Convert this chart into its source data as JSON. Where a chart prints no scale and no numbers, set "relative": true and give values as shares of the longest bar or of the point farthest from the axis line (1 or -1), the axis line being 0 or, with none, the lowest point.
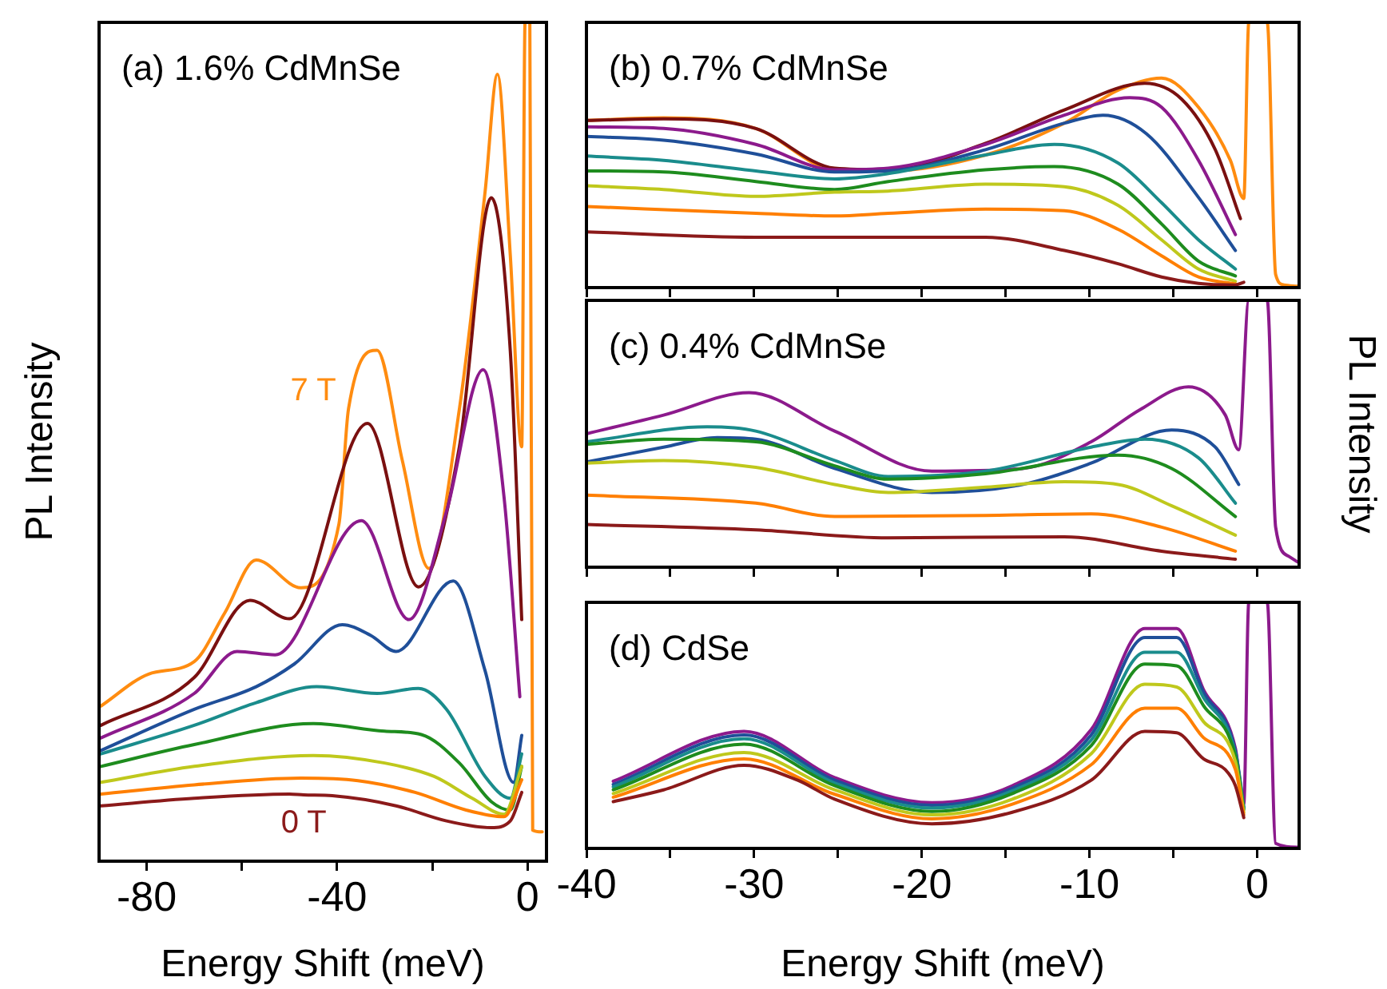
{
  "chart_data": [
    {
      "type": "line",
      "title": "(a) 1.6% CdMnSe",
      "xlabel": "Energy Shift (meV)",
      "ylabel": "PL Intensity",
      "relative": true,
      "tick_labels": "x",
      "xlim": [
        -90,
        4
      ],
      "xticks": [
        -80,
        {
          "value": -60,
          "label": null
        },
        -40,
        {
          "value": -20,
          "label": null
        },
        0
      ],
      "annotations": [
        "7 T",
        "0 T"
      ],
      "series": [
        {
          "color": "#8b1a1a",
          "x": [
            -89.6,
            -70,
            -50,
            -47,
            -41,
            -27.6,
            -17,
            -7.6,
            -3.6,
            -1.2
          ],
          "values": [
            0.066,
            0.075,
            0.08,
            0.079,
            0.078,
            0.066,
            0.048,
            0.04,
            0.048,
            0.082
          ]
        },
        {
          "color": "#ff7f00",
          "x": [
            -89.6,
            -70,
            -47.6,
            -35.6,
            -23.6,
            -12.9,
            -4.9,
            -1.2
          ],
          "values": [
            0.08,
            0.091,
            0.099,
            0.096,
            0.082,
            0.061,
            0.053,
            0.097
          ]
        },
        {
          "color": "#bfc81c",
          "x": [
            -89.6,
            -70,
            -45,
            -30,
            -19.6,
            -11.6,
            -4.9,
            -1.2
          ],
          "values": [
            0.094,
            0.113,
            0.126,
            0.117,
            0.101,
            0.075,
            0.056,
            0.113
          ]
        },
        {
          "color": "#1e8c1e",
          "x": [
            -89.6,
            -70,
            -45,
            -30,
            -22.3,
            -14.3,
            -7.6,
            -3.6,
            -1.2
          ],
          "values": [
            0.113,
            0.139,
            0.164,
            0.155,
            0.151,
            0.117,
            0.071,
            0.061,
            0.113
          ]
        },
        {
          "color": "#1a8c8c",
          "x": [
            -89.6,
            -70,
            -57,
            -44.3,
            -31.6,
            -22.9,
            -17,
            -8.9,
            -3.6,
            -1.2
          ],
          "values": [
            0.128,
            0.162,
            0.189,
            0.208,
            0.2,
            0.206,
            0.181,
            0.101,
            0.075,
            0.128
          ]
        },
        {
          "color": "#1f4f99",
          "x": [
            -89.6,
            -70,
            -57,
            -49,
            -38.9,
            -32.9,
            -27.6,
            -15.6,
            -8.9,
            -2.9,
            -1.2
          ],
          "values": [
            0.132,
            0.181,
            0.208,
            0.235,
            0.282,
            0.269,
            0.25,
            0.334,
            0.227,
            0.094,
            0.15
          ]
        },
        {
          "color": "#8c1a8c",
          "x": [
            -89.6,
            -70,
            -61,
            -53,
            -34.9,
            -24.9,
            -17,
            -9.3,
            -4.9,
            -1.6
          ],
          "values": [
            0.147,
            0.2,
            0.25,
            0.246,
            0.406,
            0.288,
            0.417,
            0.586,
            0.433,
            0.196
          ]
        },
        {
          "color": "#7a1010",
          "x": [
            -89.6,
            -70,
            -58.3,
            -50,
            -33.6,
            -22.9,
            -14.3,
            -7.6,
            -3.6,
            -1.2
          ],
          "values": [
            0.162,
            0.219,
            0.311,
            0.289,
            0.522,
            0.327,
            0.494,
            0.791,
            0.608,
            0.288
          ]
        },
        {
          "color": "#ff8c10",
          "x": [
            -89.6,
            -79.6,
            -70,
            -63.6,
            -57,
            -47.6,
            -39.6,
            -37.6,
            -31.6,
            -26.3,
            -20.7,
            -14.3,
            -8.9,
            -6.3,
            -3.6,
            -1.2,
            -0.5,
            0.5,
            1.1,
            3.1
          ],
          "values": [
            0.185,
            0.223,
            0.238,
            0.296,
            0.359,
            0.326,
            0.402,
            0.539,
            0.609,
            0.478,
            0.349,
            0.539,
            0.798,
            0.938,
            0.722,
            0.494,
            1,
            1,
            0.037,
            0.035
          ]
        }
      ]
    },
    {
      "type": "line",
      "title": "(b) 0.7% CdMnSe",
      "relative": true,
      "tick_labels": false,
      "xlim": [
        -40,
        2.5
      ],
      "xticks": [
        {
          "value": -40,
          "label": null
        },
        {
          "value": -35,
          "label": null
        },
        {
          "value": -30,
          "label": null
        },
        {
          "value": -25,
          "label": null
        },
        {
          "value": -20,
          "label": null
        },
        {
          "value": -15,
          "label": null
        },
        {
          "value": -10,
          "label": null
        },
        {
          "value": -5,
          "label": null
        },
        {
          "value": 0,
          "label": null
        }
      ],
      "series": [
        {
          "color": "#8b1a1a",
          "x": [
            -40,
            -29.9,
            -22,
            -16.2,
            -11.5,
            -8.3,
            -5.7,
            -3.5,
            -1.3,
            -0.8
          ],
          "values": [
            0.21,
            0.19,
            0.19,
            0.19,
            0.14,
            0.09,
            0.04,
            0.016,
            0.01,
            0.02
          ]
        },
        {
          "color": "#ff7f00",
          "x": [
            -40,
            -29.9,
            -25.2,
            -22,
            -16.2,
            -11.5,
            -8.3,
            -5.7,
            -3.5,
            -1.3
          ],
          "values": [
            0.306,
            0.28,
            0.27,
            0.28,
            0.296,
            0.29,
            0.22,
            0.12,
            0.04,
            0.014
          ]
        },
        {
          "color": "#bfc81c",
          "x": [
            -40,
            -35.4,
            -29.9,
            -25.2,
            -22,
            -16.2,
            -11.5,
            -8.3,
            -5.7,
            -3.5,
            -1.3
          ],
          "values": [
            0.384,
            0.37,
            0.344,
            0.36,
            0.364,
            0.39,
            0.38,
            0.31,
            0.18,
            0.07,
            0.024
          ]
        },
        {
          "color": "#1e8c1e",
          "x": [
            -40,
            -35.4,
            -29.9,
            -25.2,
            -22,
            -16.2,
            -12.1,
            -8.3,
            -5.7,
            -3.5,
            -1.3
          ],
          "values": [
            0.44,
            0.436,
            0.4,
            0.37,
            0.4,
            0.444,
            0.456,
            0.39,
            0.24,
            0.1,
            0.044
          ]
        },
        {
          "color": "#1a8c8c",
          "x": [
            -40,
            -35.4,
            -29.9,
            -25.2,
            -22,
            -16.2,
            -12.1,
            -8.3,
            -5.7,
            -3.5,
            -1.3
          ],
          "values": [
            0.496,
            0.48,
            0.44,
            0.41,
            0.43,
            0.5,
            0.54,
            0.47,
            0.32,
            0.18,
            0.07
          ]
        },
        {
          "color": "#1f4f99",
          "x": [
            -40,
            -35.4,
            -29.9,
            -25.2,
            -22,
            -16.2,
            -11.5,
            -9.2,
            -6.6,
            -3.5,
            -1.3
          ],
          "values": [
            0.57,
            0.556,
            0.504,
            0.436,
            0.44,
            0.52,
            0.62,
            0.65,
            0.58,
            0.34,
            0.14
          ]
        },
        {
          "color": "#8c1a8c",
          "x": [
            -40,
            -35.4,
            -29.9,
            -25.2,
            -22,
            -16.2,
            -11.5,
            -7.6,
            -5.7,
            -3.5,
            -1.3
          ],
          "values": [
            0.606,
            0.6,
            0.54,
            0.444,
            0.45,
            0.54,
            0.65,
            0.716,
            0.68,
            0.48,
            0.2
          ]
        },
        {
          "color": "#7a1010",
          "x": [
            -40,
            -35.4,
            -29.9,
            -25.2,
            -22,
            -16.2,
            -11.5,
            -6.7,
            -4.5,
            -2.5,
            -1.0
          ],
          "values": [
            0.63,
            0.636,
            0.6,
            0.45,
            0.444,
            0.544,
            0.67,
            0.77,
            0.71,
            0.52,
            0.26
          ]
        },
        {
          "color": "#ff8c10",
          "x": [
            -40,
            -35.4,
            -29.9,
            -25.2,
            -22,
            -16.2,
            -11.5,
            -8.3,
            -5.7,
            -3.5,
            -1.6,
            -0.8,
            -0.5,
            0.6,
            1.1,
            1.6,
            2.4
          ],
          "values": [
            0.63,
            0.64,
            0.6,
            0.444,
            0.44,
            0.5,
            0.62,
            0.744,
            0.79,
            0.68,
            0.48,
            0.336,
            1,
            1,
            0.05,
            0.01,
            0.005
          ]
        }
      ]
    },
    {
      "type": "line",
      "title": "(c) 0.4% CdMnSe",
      "y2label": "PL Intensity",
      "relative": true,
      "tick_labels": false,
      "xlim": [
        -40,
        2.5
      ],
      "xticks": [
        {
          "value": -40,
          "label": null
        },
        {
          "value": -35,
          "label": null
        },
        {
          "value": -30,
          "label": null
        },
        {
          "value": -25,
          "label": null
        },
        {
          "value": -20,
          "label": null
        },
        {
          "value": -15,
          "label": null
        },
        {
          "value": -10,
          "label": null
        },
        {
          "value": -5,
          "label": null
        },
        {
          "value": 0,
          "label": null
        }
      ],
      "series": [
        {
          "color": "#8b1a1a",
          "x": [
            -40,
            -29.9,
            -22,
            -11.5,
            -5.7,
            -1.3
          ],
          "values": [
            0.16,
            0.14,
            0.11,
            0.114,
            0.06,
            0.03
          ]
        },
        {
          "color": "#ff7f00",
          "x": [
            -40,
            -29.9,
            -25.2,
            -16.2,
            -9.9,
            -5.7,
            -1.3
          ],
          "values": [
            0.27,
            0.24,
            0.19,
            0.194,
            0.2,
            0.15,
            0.06
          ]
        },
        {
          "color": "#bfc81c",
          "x": [
            -40,
            -35.4,
            -29.9,
            -25.2,
            -22,
            -16.2,
            -11.5,
            -8.3,
            -5.1,
            -1.3
          ],
          "values": [
            0.39,
            0.4,
            0.374,
            0.31,
            0.28,
            0.3,
            0.32,
            0.31,
            0.23,
            0.12
          ]
        },
        {
          "color": "#1e8c1e",
          "x": [
            -40,
            -35.4,
            -29.9,
            -25.2,
            -22,
            -16.2,
            -8.3,
            -5.1,
            -1.3
          ],
          "values": [
            0.46,
            0.48,
            0.47,
            0.38,
            0.33,
            0.35,
            0.42,
            0.37,
            0.19
          ]
        },
        {
          "color": "#1a8c8c",
          "x": [
            -40,
            -32.8,
            -29.9,
            -25.2,
            -22,
            -16.2,
            -9.9,
            -6.7,
            -3.5,
            -1.3
          ],
          "values": [
            0.47,
            0.526,
            0.51,
            0.4,
            0.34,
            0.36,
            0.45,
            0.48,
            0.41,
            0.24
          ]
        },
        {
          "color": "#1f4f99",
          "x": [
            -40,
            -35.4,
            -32.2,
            -29.9,
            -25.2,
            -19.4,
            -14,
            -9.9,
            -5.1,
            -2.5,
            -1.1
          ],
          "values": [
            0.394,
            0.45,
            0.486,
            0.48,
            0.37,
            0.28,
            0.31,
            0.39,
            0.514,
            0.45,
            0.31
          ]
        },
        {
          "color": "#8c1a8c",
          "x": [
            -40,
            -35.4,
            -30.3,
            -25.2,
            -19.4,
            -14,
            -9.9,
            -7,
            -4.1,
            -1.9,
            -1.1,
            -0.5,
            0.6,
            1.1,
            1.9,
            2.4
          ],
          "values": [
            0.5,
            0.57,
            0.654,
            0.51,
            0.36,
            0.37,
            0.47,
            0.59,
            0.676,
            0.57,
            0.44,
            1,
            1,
            0.15,
            0.04,
            0.02
          ]
        }
      ]
    },
    {
      "type": "line",
      "title": "(d) CdSe",
      "xlabel": "Energy Shift (meV)",
      "relative": true,
      "tick_labels": "x",
      "xlim": [
        -40,
        2.5
      ],
      "xticks": [
        -40,
        {
          "value": -35,
          "label": null
        },
        -30,
        {
          "value": -25,
          "label": null
        },
        -20,
        {
          "value": -15,
          "label": null
        },
        -10,
        {
          "value": -5,
          "label": null
        },
        0
      ],
      "series": [
        {
          "color": "#8b1a1a",
          "x": [
            -38.4,
            -35.4,
            -30.6,
            -27.4,
            -25.2,
            -19.4,
            -14.6,
            -9.9,
            -6.7,
            -4.8,
            -3.2,
            -1.9,
            -1.3,
            -0.8
          ],
          "values": [
            0.19,
            0.238,
            0.338,
            0.277,
            0.2,
            0.1,
            0.147,
            0.277,
            0.476,
            0.47,
            0.364,
            0.32,
            0.255,
            0.125
          ]
        },
        {
          "color": "#ff7f00",
          "x": [
            -38.4,
            -30.6,
            -25.2,
            -19.4,
            -14.6,
            -9.9,
            -6.7,
            -4.8,
            -3.2,
            -1.3,
            -0.8
          ],
          "values": [
            0.208,
            0.364,
            0.22,
            0.12,
            0.18,
            0.34,
            0.57,
            0.57,
            0.45,
            0.32,
            0.136
          ]
        },
        {
          "color": "#bfc81c",
          "x": [
            -38.4,
            -30.6,
            -25.2,
            -19.4,
            -14.6,
            -9.9,
            -6.7,
            -4.8,
            -3.2,
            -1.3,
            -0.8
          ],
          "values": [
            0.223,
            0.39,
            0.238,
            0.136,
            0.2,
            0.385,
            0.667,
            0.656,
            0.515,
            0.353,
            0.147
          ]
        },
        {
          "color": "#1e8c1e",
          "x": [
            -38.4,
            -30.6,
            -25.2,
            -19.4,
            -14.6,
            -9.9,
            -6.7,
            -4.8,
            -3.2,
            -1.3,
            -0.8
          ],
          "values": [
            0.238,
            0.424,
            0.255,
            0.15,
            0.223,
            0.418,
            0.749,
            0.742,
            0.58,
            0.374,
            0.158
          ]
        },
        {
          "color": "#1a8c8c",
          "x": [
            -38.4,
            -30.6,
            -25.2,
            -19.4,
            -14.6,
            -9.9,
            -6.7,
            -4.8,
            -3.2,
            -1.3,
            -0.8
          ],
          "values": [
            0.25,
            0.446,
            0.266,
            0.164,
            0.234,
            0.44,
            0.797,
            0.797,
            0.613,
            0.385,
            0.164
          ]
        },
        {
          "color": "#1f4f99",
          "x": [
            -38.4,
            -30.6,
            -25.2,
            -19.4,
            -14.6,
            -9.9,
            -6.7,
            -4.8,
            -3.2,
            -1.3,
            -0.8
          ],
          "values": [
            0.26,
            0.461,
            0.277,
            0.175,
            0.245,
            0.461,
            0.857,
            0.857,
            0.634,
            0.396,
            0.169
          ]
        },
        {
          "color": "#8c1a8c",
          "x": [
            -38.4,
            -30.6,
            -25.2,
            -19.4,
            -14.6,
            -9.9,
            -6.7,
            -4.8,
            -3.2,
            -1.3,
            -0.8,
            -0.5,
            0.6,
            1.1,
            2.4
          ],
          "values": [
            0.273,
            0.476,
            0.288,
            0.186,
            0.255,
            0.483,
            0.894,
            0.894,
            0.645,
            0.407,
            0.18,
            1,
            1,
            0.02,
            0.005
          ]
        }
      ]
    }
  ]
}
